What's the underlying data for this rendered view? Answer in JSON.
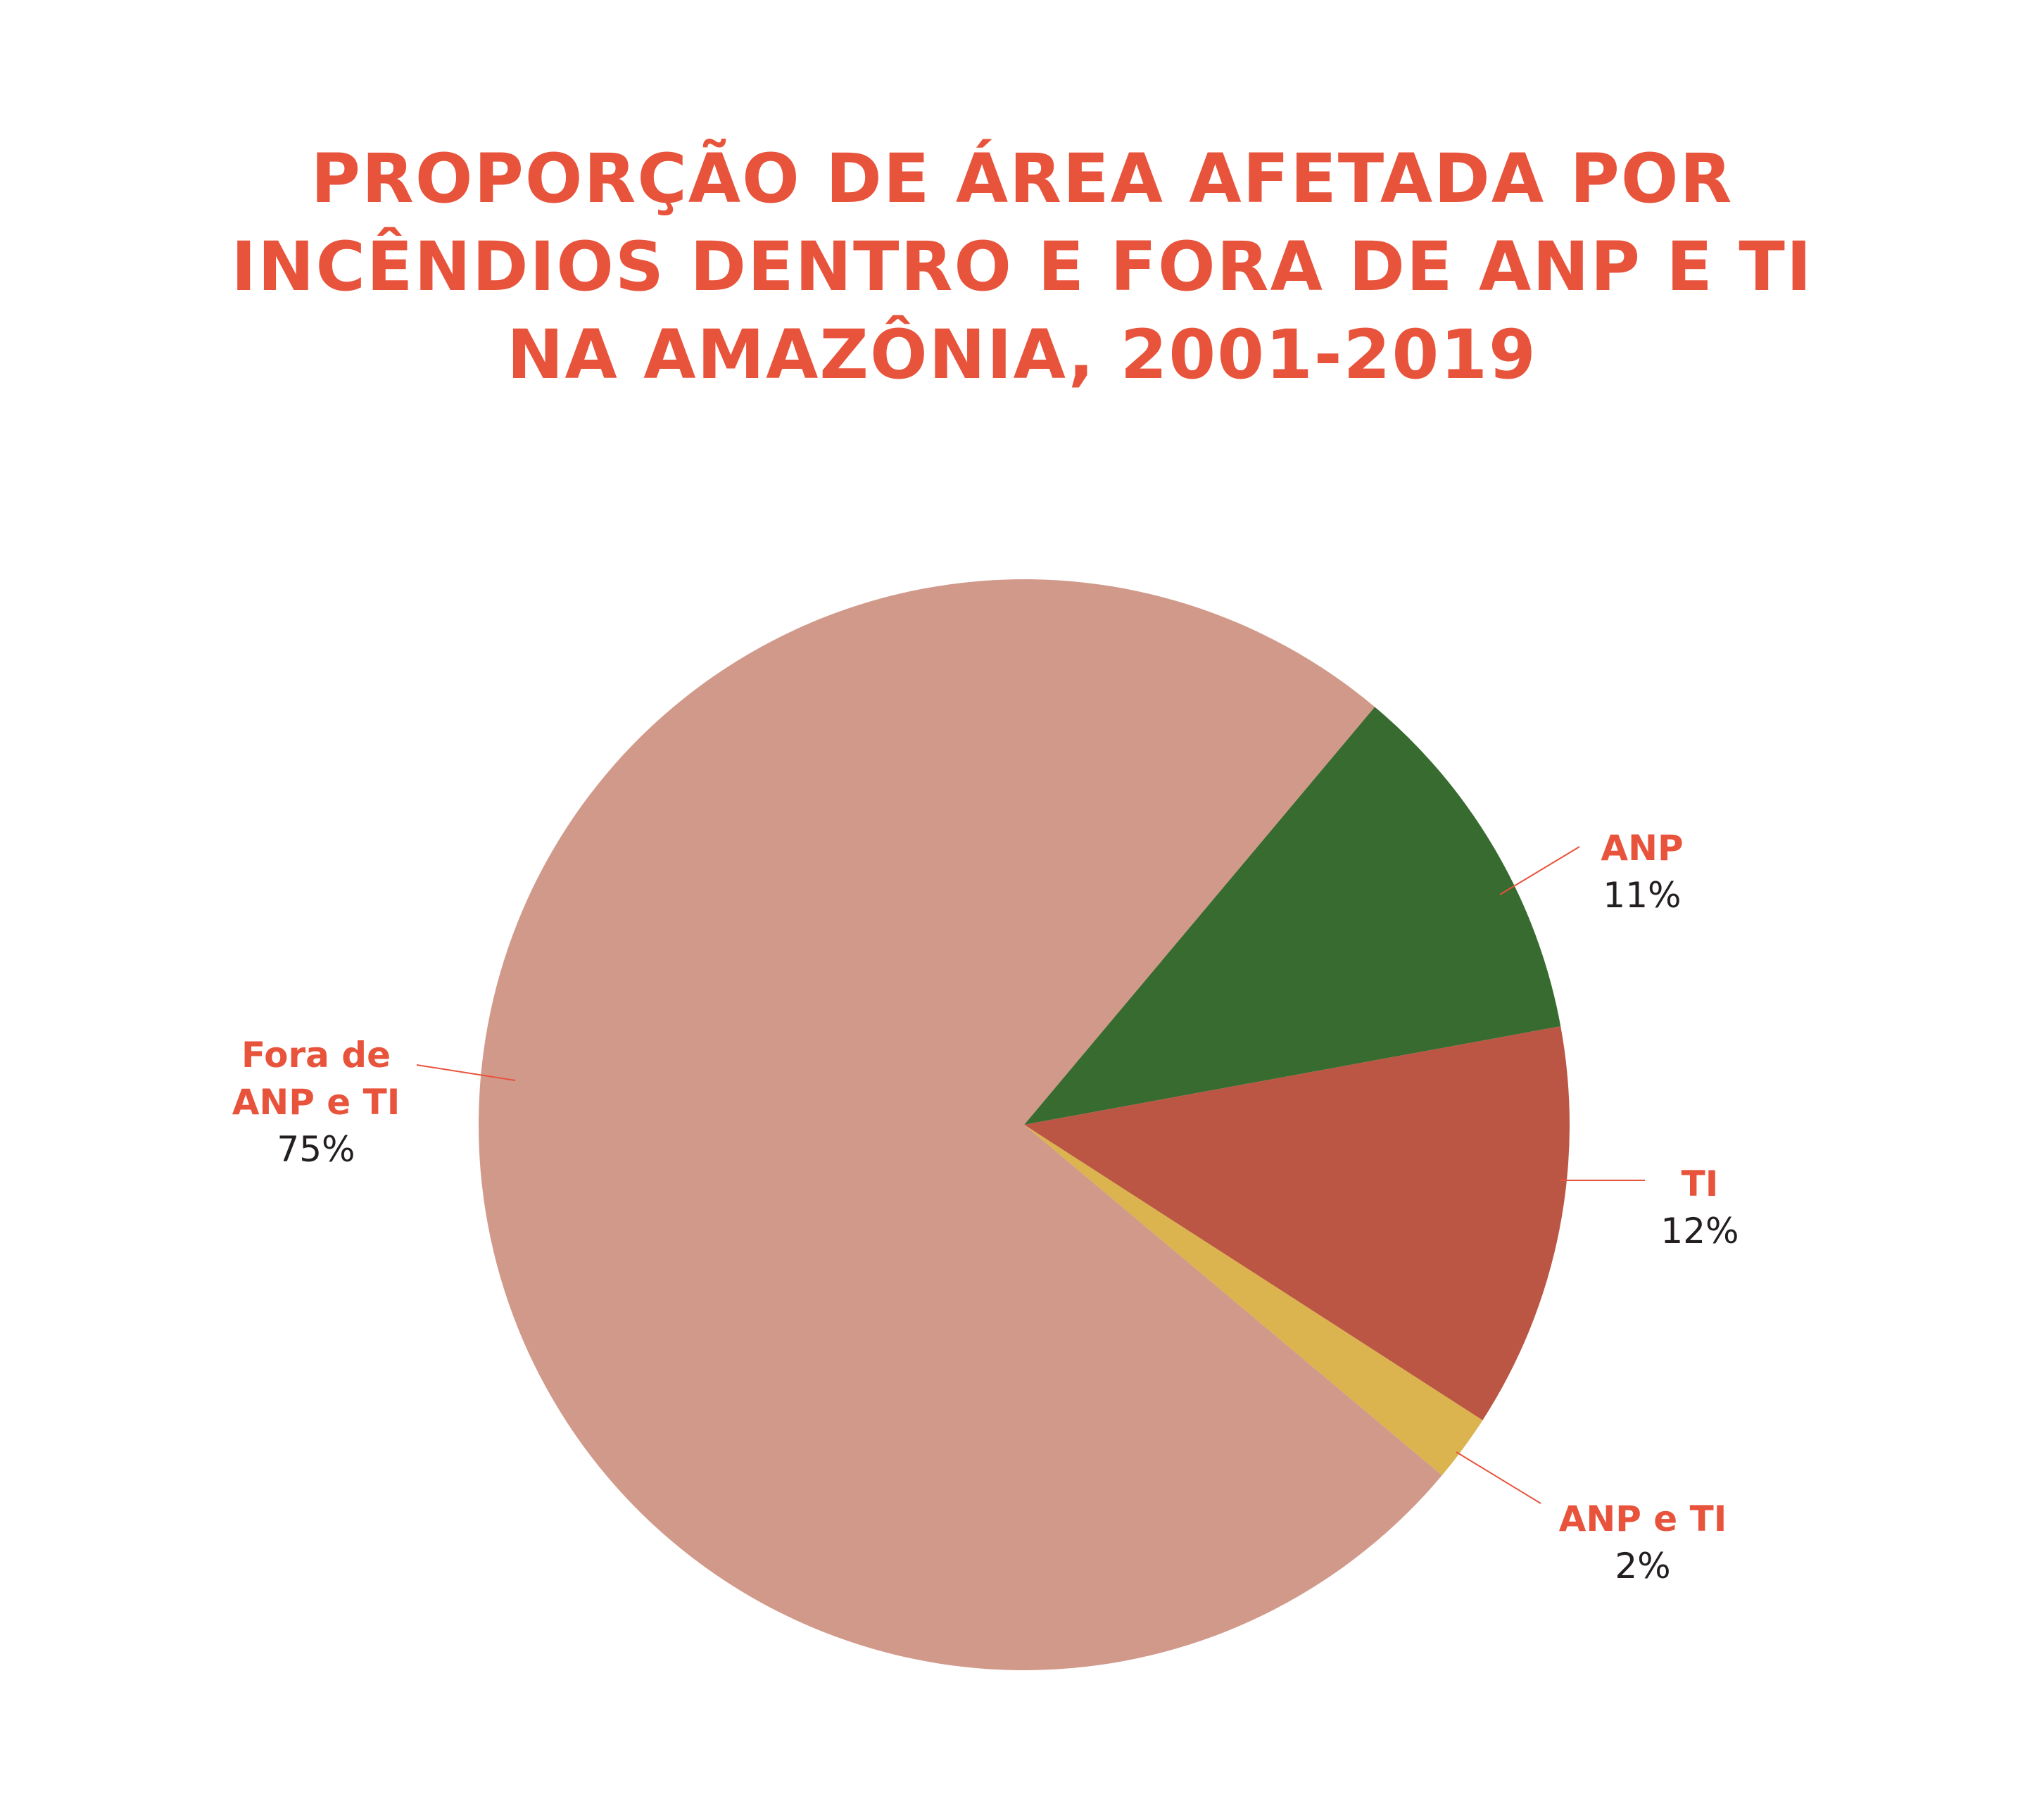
{
  "chart_data": {
    "type": "pie",
    "title_lines": [
      "PROPORÇÃO DE ÁREA AFETADA POR",
      "INCÊNDIOS DENTRO E FORA DE ANP E TI",
      "NA AMAZÔNIA, 2001-2019"
    ],
    "slices": [
      {
        "label": "Fora de ANP e TI",
        "label_lines": [
          "Fora de",
          "ANP e TI"
        ],
        "value": 75,
        "display": "75%",
        "color": "#d1998a"
      },
      {
        "label": "ANP",
        "label_lines": [
          "ANP"
        ],
        "value": 11,
        "display": "11%",
        "color": "#386b2f"
      },
      {
        "label": "TI",
        "label_lines": [
          "TI"
        ],
        "value": 12,
        "display": "12%",
        "color": "#bc5644"
      },
      {
        "label": "ANP e TI",
        "label_lines": [
          "ANP e TI"
        ],
        "value": 2,
        "display": "2%",
        "color": "#dbb34f"
      }
    ]
  },
  "colors": {
    "title": "#e8533c",
    "label_name": "#e8533c",
    "label_pct": "#231f20",
    "leader_line": "#e8533c",
    "background": "#ffffff"
  }
}
